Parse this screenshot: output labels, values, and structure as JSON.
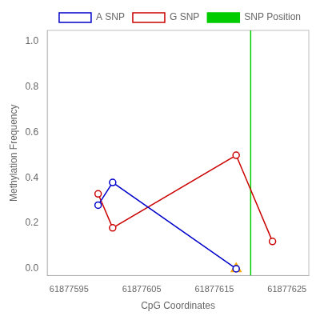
{
  "chart_data": {
    "type": "line",
    "xlabel": "CpG Coordinates",
    "ylabel": "Methylation Frequency",
    "xlim": [
      61877592,
      61877628
    ],
    "ylim": [
      -0.03,
      1.05
    ],
    "xticks": [
      61877595,
      61877605,
      61877615,
      61877625
    ],
    "yticks": [
      {
        "value": 0.0,
        "label": "0.0"
      },
      0.2,
      0.4,
      0.6,
      0.8,
      {
        "value": 1.0,
        "label": "1.0"
      }
    ],
    "grid": false,
    "legend": "upper right",
    "series": [
      {
        "name": "A SNP",
        "color": "#0000CC",
        "marker": "circle",
        "x": [
          61877599,
          61877601,
          61877618
        ],
        "values": [
          0.28,
          0.38,
          0.0
        ]
      },
      {
        "name": "G SNP",
        "color": "#CC0000",
        "marker": "circle",
        "x": [
          61877599,
          61877601,
          61877618,
          61877623
        ],
        "values": [
          0.33,
          0.18,
          0.5,
          0.12
        ]
      },
      {
        "name": "SNP Position",
        "type": "vline",
        "color": "#00CC00",
        "x": 61877620
      },
      {
        "type": "scatter",
        "marker": "triangle",
        "color": "#FFA500",
        "x": [
          61877618
        ],
        "values": [
          0.0
        ]
      }
    ]
  }
}
